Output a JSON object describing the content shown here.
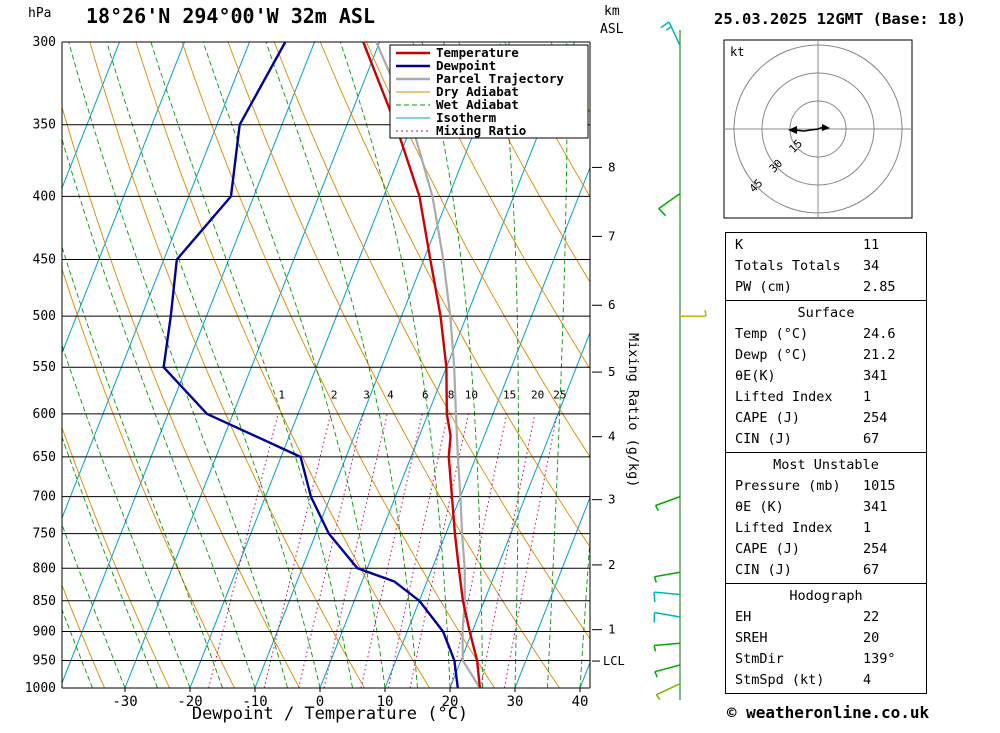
{
  "header": {
    "pressure_unit": "hPa",
    "station_title": "18°26'N 294°00'W 32m ASL",
    "km_label": "km",
    "asl_label": "ASL",
    "datetime_title": "25.03.2025 12GMT (Base: 18)"
  },
  "footer": {
    "copyright": "© weatheronline.co.uk"
  },
  "legend": {
    "items": [
      {
        "label": "Temperature",
        "color": "#cc0000",
        "style": "solid",
        "width": 2.4
      },
      {
        "label": "Dewpoint",
        "color": "#000099",
        "style": "solid",
        "width": 2.4
      },
      {
        "label": "Parcel Trajectory",
        "color": "#aaaaaa",
        "style": "solid",
        "width": 2.4
      },
      {
        "label": "Dry Adiabat",
        "color": "#dd8800",
        "style": "solid",
        "width": 1
      },
      {
        "label": "Wet Adiabat",
        "color": "#009900",
        "style": "dashed",
        "width": 1
      },
      {
        "label": "Isotherm",
        "color": "#00a0c8",
        "style": "solid",
        "width": 1
      },
      {
        "label": "Mixing Ratio",
        "color": "#cc0066",
        "style": "dotted",
        "width": 1
      }
    ]
  },
  "chart_data": {
    "type": "line",
    "title": "18°26'N 294°00'W 32m ASL",
    "xlabel": "Dewpoint / Temperature (°C)",
    "ylabel": "hPa",
    "pressure_ticks": [
      300,
      350,
      400,
      450,
      500,
      550,
      600,
      650,
      700,
      750,
      800,
      850,
      900,
      950,
      1000
    ],
    "temp_ticks": [
      -30,
      -20,
      -10,
      0,
      10,
      20,
      30,
      40
    ],
    "ylim": [
      1000,
      300
    ],
    "xlim": [
      -40,
      41.5
    ],
    "grid": true,
    "legend_position": "top-right",
    "km_ticks": [
      {
        "km": 1,
        "p": 897
      },
      {
        "km": 2,
        "p": 795
      },
      {
        "km": 3,
        "p": 704
      },
      {
        "km": 4,
        "p": 626
      },
      {
        "km": 5,
        "p": 555
      },
      {
        "km": 6,
        "p": 490
      },
      {
        "km": 7,
        "p": 431
      },
      {
        "km": 8,
        "p": 379
      }
    ],
    "lcl": {
      "label": "LCL",
      "pressure": 951
    },
    "mixing_ratio_values": [
      1,
      2,
      3,
      4,
      6,
      8,
      10,
      15,
      20,
      25
    ],
    "mixing_ratio_axis_label": "Mixing Ratio (g/kg)",
    "colors": {
      "isotherm": "#00a0c8",
      "dry_adiabat": "#dd8800",
      "wet_adiabat": "#009900",
      "mixing_ratio": "#cc0066",
      "grid": "#000000"
    },
    "series": [
      {
        "name": "Parcel Trajectory",
        "color": "#aaaaaa",
        "width": 2.2,
        "points": [
          [
            1000,
            24.6
          ],
          [
            950,
            20.3
          ],
          [
            900,
            18.5
          ],
          [
            850,
            17.0
          ],
          [
            800,
            15.0
          ],
          [
            750,
            12.5
          ],
          [
            700,
            10.0
          ],
          [
            650,
            7.2
          ],
          [
            600,
            4.3
          ],
          [
            550,
            1.2
          ],
          [
            500,
            -2.5
          ],
          [
            450,
            -7.0
          ],
          [
            400,
            -12.5
          ],
          [
            350,
            -20.0
          ],
          [
            300,
            -30.5
          ]
        ]
      },
      {
        "name": "Temperature",
        "color": "#cc0000",
        "width": 2.4,
        "points": [
          [
            1000,
            24.6
          ],
          [
            950,
            22.5
          ],
          [
            900,
            19.6
          ],
          [
            850,
            16.7
          ],
          [
            800,
            14.1
          ],
          [
            750,
            11.4
          ],
          [
            700,
            8.7
          ],
          [
            650,
            5.8
          ],
          [
            625,
            4.8
          ],
          [
            600,
            2.9
          ],
          [
            550,
            0.0
          ],
          [
            500,
            -4.0
          ],
          [
            450,
            -9.0
          ],
          [
            400,
            -14.5
          ],
          [
            350,
            -22.5
          ],
          [
            300,
            -32.5
          ]
        ]
      },
      {
        "name": "Dewpoint",
        "color": "#000099",
        "width": 2.4,
        "points": [
          [
            1000,
            21.2
          ],
          [
            950,
            19.0
          ],
          [
            900,
            15.5
          ],
          [
            850,
            10.0
          ],
          [
            820,
            5.0
          ],
          [
            800,
            -1.5
          ],
          [
            750,
            -8.0
          ],
          [
            700,
            -13.0
          ],
          [
            650,
            -17.0
          ],
          [
            600,
            -34.0
          ],
          [
            550,
            -43.5
          ],
          [
            500,
            -45.5
          ],
          [
            450,
            -48.0
          ],
          [
            400,
            -43.5
          ],
          [
            350,
            -46.5
          ],
          [
            300,
            -44.5
          ]
        ]
      }
    ]
  },
  "wind_barbs": [
    {
      "p": 302,
      "angle": 115,
      "speed": 15,
      "color": "#00b8b8"
    },
    {
      "p": 398,
      "angle": 215,
      "speed": 10,
      "color": "#00aa00"
    },
    {
      "p": 500,
      "angle": 0,
      "speed": 5,
      "color": "#b8b800"
    },
    {
      "p": 700,
      "angle": 200,
      "speed": 5,
      "color": "#00aa00"
    },
    {
      "p": 806,
      "angle": 190,
      "speed": 5,
      "color": "#00aa00"
    },
    {
      "p": 840,
      "angle": 175,
      "speed": 10,
      "color": "#00b8b8"
    },
    {
      "p": 876,
      "angle": 170,
      "speed": 10,
      "color": "#00b8b8"
    },
    {
      "p": 920,
      "angle": 185,
      "speed": 5,
      "color": "#00aa00"
    },
    {
      "p": 958,
      "angle": 195,
      "speed": 5,
      "color": "#00aa00"
    },
    {
      "p": 992,
      "angle": 205,
      "speed": 5,
      "color": "#7ab800"
    }
  ],
  "hodograph": {
    "unit_label": "kt",
    "rings": [
      15,
      30,
      45
    ]
  },
  "stats": {
    "sections": [
      {
        "title": null,
        "rows": [
          [
            "K",
            "11"
          ],
          [
            "Totals Totals",
            "34"
          ],
          [
            "PW (cm)",
            "2.85"
          ]
        ]
      },
      {
        "title": "Surface",
        "rows": [
          [
            "Temp (°C)",
            "24.6"
          ],
          [
            "Dewp (°C)",
            "21.2"
          ],
          [
            "θE(K)",
            "341"
          ],
          [
            "Lifted Index",
            "1"
          ],
          [
            "CAPE (J)",
            "254"
          ],
          [
            "CIN (J)",
            "67"
          ]
        ]
      },
      {
        "title": "Most Unstable",
        "rows": [
          [
            "Pressure (mb)",
            "1015"
          ],
          [
            "θE (K)",
            "341"
          ],
          [
            "Lifted Index",
            "1"
          ],
          [
            "CAPE (J)",
            "254"
          ],
          [
            "CIN (J)",
            "67"
          ]
        ]
      },
      {
        "title": "Hodograph",
        "rows": [
          [
            "EH",
            "22"
          ],
          [
            "SREH",
            "20"
          ],
          [
            "StmDir",
            "139°"
          ],
          [
            "StmSpd (kt)",
            "4"
          ]
        ]
      }
    ]
  }
}
